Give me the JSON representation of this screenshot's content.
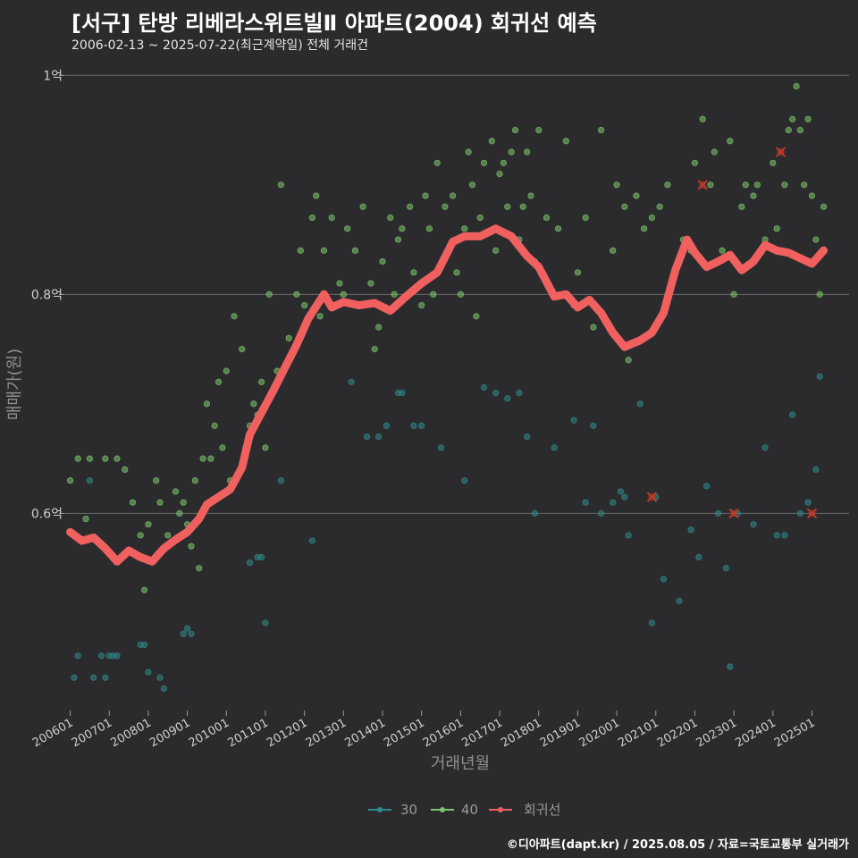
{
  "title": "[서구] 탄방 리베라스위트빌Ⅱ 아파트(2004) 회귀선 예측",
  "subtitle": "2006-02-13 ~ 2025-07-22(최근계약일) 전체 거래건",
  "footer": "©디아파트(dapt.kr) / 2025.08.05 / 자료=국토교통부 실거래가",
  "colors": {
    "background": "#2b2b2d",
    "s30": "#2e8b8b",
    "s40": "#7ac76a",
    "regression": "#f0605f",
    "cancelled": "#c0392b"
  },
  "chart_data": {
    "type": "scatter",
    "title": "[서구] 탄방 리베라스위트빌Ⅱ 아파트(2004) 회귀선 예측",
    "xlabel": "거래년월",
    "ylabel": "매매가(원)",
    "xlim": [
      2005.85,
      2025.95
    ],
    "ylim": [
      0.42,
      1.01
    ],
    "y_unit": "억",
    "yticks": [
      {
        "value": 0.6,
        "label": "0.6억"
      },
      {
        "value": 0.8,
        "label": "0.8억"
      },
      {
        "value": 1.0,
        "label": "1억"
      }
    ],
    "xticks": [
      {
        "value": 2006.0,
        "label": "200601"
      },
      {
        "value": 2007.0,
        "label": "200701"
      },
      {
        "value": 2008.0,
        "label": "200801"
      },
      {
        "value": 2009.0,
        "label": "200901"
      },
      {
        "value": 2010.0,
        "label": "201001"
      },
      {
        "value": 2011.0,
        "label": "201101"
      },
      {
        "value": 2012.0,
        "label": "201201"
      },
      {
        "value": 2013.0,
        "label": "201301"
      },
      {
        "value": 2014.0,
        "label": "201401"
      },
      {
        "value": 2015.0,
        "label": "201501"
      },
      {
        "value": 2016.0,
        "label": "201601"
      },
      {
        "value": 2017.0,
        "label": "201701"
      },
      {
        "value": 2018.0,
        "label": "201801"
      },
      {
        "value": 2019.0,
        "label": "201901"
      },
      {
        "value": 2020.0,
        "label": "202001"
      },
      {
        "value": 2021.0,
        "label": "202101"
      },
      {
        "value": 2022.0,
        "label": "202201"
      },
      {
        "value": 2023.0,
        "label": "202301"
      },
      {
        "value": 2024.0,
        "label": "202401"
      },
      {
        "value": 2025.0,
        "label": "202501"
      }
    ],
    "legend": [
      {
        "name": "30",
        "color": "#2e8b8b"
      },
      {
        "name": "40",
        "color": "#7ac76a"
      },
      {
        "name": "회귀선",
        "color": "#f0605f"
      }
    ],
    "series": [
      {
        "name": "30",
        "color": "#2e8b8b",
        "points": [
          [
            2006.1,
            0.45
          ],
          [
            2006.2,
            0.47
          ],
          [
            2006.5,
            0.63
          ],
          [
            2006.6,
            0.45
          ],
          [
            2006.8,
            0.47
          ],
          [
            2006.9,
            0.45
          ],
          [
            2007.0,
            0.47
          ],
          [
            2007.1,
            0.47
          ],
          [
            2007.2,
            0.47
          ],
          [
            2007.8,
            0.48
          ],
          [
            2007.9,
            0.48
          ],
          [
            2008.0,
            0.455
          ],
          [
            2008.3,
            0.45
          ],
          [
            2008.4,
            0.44
          ],
          [
            2008.9,
            0.49
          ],
          [
            2009.0,
            0.495
          ],
          [
            2009.1,
            0.49
          ],
          [
            2010.6,
            0.555
          ],
          [
            2010.8,
            0.56
          ],
          [
            2010.9,
            0.56
          ],
          [
            2011.0,
            0.5
          ],
          [
            2011.4,
            0.63
          ],
          [
            2012.2,
            0.575
          ],
          [
            2013.2,
            0.72
          ],
          [
            2013.6,
            0.67
          ],
          [
            2013.9,
            0.67
          ],
          [
            2014.1,
            0.68
          ],
          [
            2014.4,
            0.71
          ],
          [
            2014.5,
            0.71
          ],
          [
            2014.8,
            0.68
          ],
          [
            2015.0,
            0.68
          ],
          [
            2015.5,
            0.66
          ],
          [
            2016.1,
            0.63
          ],
          [
            2016.6,
            0.715
          ],
          [
            2016.9,
            0.71
          ],
          [
            2017.2,
            0.705
          ],
          [
            2017.5,
            0.71
          ],
          [
            2017.7,
            0.67
          ],
          [
            2017.9,
            0.6
          ],
          [
            2018.4,
            0.66
          ],
          [
            2018.9,
            0.685
          ],
          [
            2019.2,
            0.61
          ],
          [
            2019.4,
            0.68
          ],
          [
            2019.6,
            0.6
          ],
          [
            2019.9,
            0.61
          ],
          [
            2020.1,
            0.62
          ],
          [
            2020.2,
            0.615
          ],
          [
            2020.3,
            0.58
          ],
          [
            2020.6,
            0.7
          ],
          [
            2020.9,
            0.5
          ],
          [
            2021.0,
            0.615
          ],
          [
            2021.2,
            0.54
          ],
          [
            2021.6,
            0.52
          ],
          [
            2021.9,
            0.585
          ],
          [
            2022.1,
            0.56
          ],
          [
            2022.3,
            0.625
          ],
          [
            2022.6,
            0.6
          ],
          [
            2022.8,
            0.55
          ],
          [
            2022.9,
            0.46
          ],
          [
            2023.1,
            0.6
          ],
          [
            2023.5,
            0.59
          ],
          [
            2023.8,
            0.66
          ],
          [
            2024.1,
            0.58
          ],
          [
            2024.3,
            0.58
          ],
          [
            2024.5,
            0.69
          ],
          [
            2024.7,
            0.6
          ],
          [
            2024.9,
            0.61
          ],
          [
            2025.1,
            0.64
          ],
          [
            2025.2,
            0.725
          ]
        ]
      },
      {
        "name": "40",
        "color": "#7ac76a",
        "points": [
          [
            2006.0,
            0.63
          ],
          [
            2006.2,
            0.65
          ],
          [
            2006.4,
            0.595
          ],
          [
            2006.5,
            0.65
          ],
          [
            2006.9,
            0.65
          ],
          [
            2007.2,
            0.65
          ],
          [
            2007.4,
            0.64
          ],
          [
            2007.6,
            0.61
          ],
          [
            2007.8,
            0.58
          ],
          [
            2007.9,
            0.53
          ],
          [
            2008.0,
            0.59
          ],
          [
            2008.2,
            0.63
          ],
          [
            2008.3,
            0.61
          ],
          [
            2008.5,
            0.58
          ],
          [
            2008.7,
            0.62
          ],
          [
            2008.8,
            0.6
          ],
          [
            2008.9,
            0.61
          ],
          [
            2009.0,
            0.59
          ],
          [
            2009.1,
            0.57
          ],
          [
            2009.2,
            0.63
          ],
          [
            2009.3,
            0.55
          ],
          [
            2009.4,
            0.65
          ],
          [
            2009.5,
            0.7
          ],
          [
            2009.6,
            0.65
          ],
          [
            2009.7,
            0.68
          ],
          [
            2009.8,
            0.72
          ],
          [
            2009.9,
            0.66
          ],
          [
            2010.0,
            0.73
          ],
          [
            2010.1,
            0.63
          ],
          [
            2010.2,
            0.78
          ],
          [
            2010.4,
            0.75
          ],
          [
            2010.5,
            0.66
          ],
          [
            2010.6,
            0.68
          ],
          [
            2010.7,
            0.7
          ],
          [
            2010.8,
            0.69
          ],
          [
            2010.9,
            0.72
          ],
          [
            2011.0,
            0.66
          ],
          [
            2011.1,
            0.8
          ],
          [
            2011.3,
            0.73
          ],
          [
            2011.4,
            0.9
          ],
          [
            2011.6,
            0.76
          ],
          [
            2011.8,
            0.8
          ],
          [
            2011.9,
            0.84
          ],
          [
            2012.0,
            0.79
          ],
          [
            2012.2,
            0.87
          ],
          [
            2012.3,
            0.89
          ],
          [
            2012.4,
            0.78
          ],
          [
            2012.5,
            0.84
          ],
          [
            2012.7,
            0.87
          ],
          [
            2012.9,
            0.81
          ],
          [
            2013.0,
            0.8
          ],
          [
            2013.1,
            0.86
          ],
          [
            2013.3,
            0.84
          ],
          [
            2013.5,
            0.88
          ],
          [
            2013.7,
            0.81
          ],
          [
            2013.8,
            0.75
          ],
          [
            2013.9,
            0.77
          ],
          [
            2014.0,
            0.83
          ],
          [
            2014.2,
            0.87
          ],
          [
            2014.3,
            0.8
          ],
          [
            2014.4,
            0.85
          ],
          [
            2014.5,
            0.86
          ],
          [
            2014.7,
            0.88
          ],
          [
            2014.8,
            0.82
          ],
          [
            2015.0,
            0.79
          ],
          [
            2015.1,
            0.89
          ],
          [
            2015.2,
            0.86
          ],
          [
            2015.3,
            0.8
          ],
          [
            2015.4,
            0.92
          ],
          [
            2015.6,
            0.88
          ],
          [
            2015.8,
            0.89
          ],
          [
            2015.9,
            0.82
          ],
          [
            2016.0,
            0.8
          ],
          [
            2016.1,
            0.86
          ],
          [
            2016.2,
            0.93
          ],
          [
            2016.3,
            0.9
          ],
          [
            2016.4,
            0.78
          ],
          [
            2016.5,
            0.87
          ],
          [
            2016.6,
            0.92
          ],
          [
            2016.8,
            0.94
          ],
          [
            2016.9,
            0.84
          ],
          [
            2017.0,
            0.91
          ],
          [
            2017.1,
            0.92
          ],
          [
            2017.2,
            0.88
          ],
          [
            2017.3,
            0.93
          ],
          [
            2017.4,
            0.95
          ],
          [
            2017.5,
            0.85
          ],
          [
            2017.6,
            0.88
          ],
          [
            2017.7,
            0.93
          ],
          [
            2017.8,
            0.89
          ],
          [
            2017.9,
            0.83
          ],
          [
            2018.0,
            0.95
          ],
          [
            2018.2,
            0.87
          ],
          [
            2018.5,
            0.86
          ],
          [
            2018.7,
            0.94
          ],
          [
            2018.9,
            0.79
          ],
          [
            2019.0,
            0.82
          ],
          [
            2019.2,
            0.87
          ],
          [
            2019.4,
            0.77
          ],
          [
            2019.6,
            0.95
          ],
          [
            2019.9,
            0.84
          ],
          [
            2020.0,
            0.9
          ],
          [
            2020.2,
            0.88
          ],
          [
            2020.3,
            0.74
          ],
          [
            2020.5,
            0.89
          ],
          [
            2020.7,
            0.86
          ],
          [
            2020.9,
            0.87
          ],
          [
            2021.1,
            0.88
          ],
          [
            2021.3,
            0.9
          ],
          [
            2021.5,
            0.82
          ],
          [
            2021.7,
            0.85
          ],
          [
            2021.9,
            0.84
          ],
          [
            2022.0,
            0.92
          ],
          [
            2022.2,
            0.96
          ],
          [
            2022.4,
            0.9
          ],
          [
            2022.5,
            0.93
          ],
          [
            2022.7,
            0.84
          ],
          [
            2022.9,
            0.94
          ],
          [
            2023.0,
            0.8
          ],
          [
            2023.2,
            0.88
          ],
          [
            2023.3,
            0.9
          ],
          [
            2023.5,
            0.89
          ],
          [
            2023.6,
            0.9
          ],
          [
            2023.8,
            0.85
          ],
          [
            2024.0,
            0.92
          ],
          [
            2024.1,
            0.86
          ],
          [
            2024.3,
            0.9
          ],
          [
            2024.4,
            0.95
          ],
          [
            2024.5,
            0.96
          ],
          [
            2024.6,
            0.99
          ],
          [
            2024.7,
            0.95
          ],
          [
            2024.8,
            0.9
          ],
          [
            2024.9,
            0.96
          ],
          [
            2025.0,
            0.89
          ],
          [
            2025.1,
            0.85
          ],
          [
            2025.2,
            0.8
          ],
          [
            2025.3,
            0.88
          ]
        ]
      }
    ],
    "cancelled": [
      [
        2020.9,
        0.615
      ],
      [
        2022.2,
        0.9
      ],
      [
        2023.0,
        0.6
      ],
      [
        2024.2,
        0.93
      ],
      [
        2025.0,
        0.6
      ]
    ],
    "regression": [
      [
        2006.0,
        0.583
      ],
      [
        2006.3,
        0.575
      ],
      [
        2006.6,
        0.578
      ],
      [
        2006.9,
        0.568
      ],
      [
        2007.2,
        0.556
      ],
      [
        2007.5,
        0.566
      ],
      [
        2007.8,
        0.56
      ],
      [
        2008.1,
        0.556
      ],
      [
        2008.4,
        0.568
      ],
      [
        2008.7,
        0.576
      ],
      [
        2009.0,
        0.583
      ],
      [
        2009.3,
        0.595
      ],
      [
        2009.5,
        0.608
      ],
      [
        2009.8,
        0.615
      ],
      [
        2010.1,
        0.622
      ],
      [
        2010.4,
        0.642
      ],
      [
        2010.6,
        0.672
      ],
      [
        2010.9,
        0.692
      ],
      [
        2011.2,
        0.712
      ],
      [
        2011.5,
        0.733
      ],
      [
        2011.8,
        0.754
      ],
      [
        2012.1,
        0.778
      ],
      [
        2012.5,
        0.8
      ],
      [
        2012.7,
        0.788
      ],
      [
        2013.0,
        0.793
      ],
      [
        2013.4,
        0.79
      ],
      [
        2013.8,
        0.792
      ],
      [
        2014.2,
        0.785
      ],
      [
        2014.6,
        0.798
      ],
      [
        2015.0,
        0.81
      ],
      [
        2015.4,
        0.82
      ],
      [
        2015.8,
        0.848
      ],
      [
        2016.1,
        0.853
      ],
      [
        2016.5,
        0.853
      ],
      [
        2016.9,
        0.86
      ],
      [
        2017.3,
        0.853
      ],
      [
        2017.7,
        0.835
      ],
      [
        2018.0,
        0.825
      ],
      [
        2018.4,
        0.798
      ],
      [
        2018.7,
        0.8
      ],
      [
        2019.0,
        0.788
      ],
      [
        2019.3,
        0.795
      ],
      [
        2019.6,
        0.783
      ],
      [
        2019.9,
        0.765
      ],
      [
        2020.2,
        0.752
      ],
      [
        2020.6,
        0.758
      ],
      [
        2020.9,
        0.765
      ],
      [
        2021.2,
        0.783
      ],
      [
        2021.5,
        0.822
      ],
      [
        2021.8,
        0.85
      ],
      [
        2022.0,
        0.838
      ],
      [
        2022.3,
        0.825
      ],
      [
        2022.6,
        0.83
      ],
      [
        2022.9,
        0.836
      ],
      [
        2023.2,
        0.822
      ],
      [
        2023.5,
        0.83
      ],
      [
        2023.8,
        0.845
      ],
      [
        2024.1,
        0.84
      ],
      [
        2024.4,
        0.838
      ],
      [
        2024.7,
        0.833
      ],
      [
        2025.0,
        0.828
      ],
      [
        2025.3,
        0.84
      ]
    ]
  }
}
